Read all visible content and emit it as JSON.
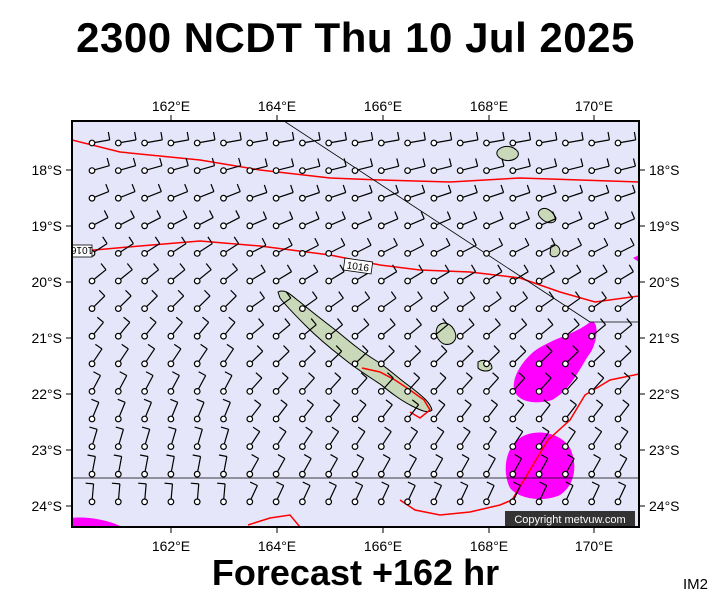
{
  "header": {
    "title": "2300 NCDT Thu 10 Jul 2025"
  },
  "footer": {
    "forecast": "Forecast +162 hr",
    "panel_id": "IM2"
  },
  "map": {
    "lon_labels": [
      "162°E",
      "164°E",
      "166°E",
      "168°E",
      "170°E"
    ],
    "lat_labels": [
      "18°S",
      "19°S",
      "20°S",
      "21°S",
      "22°S",
      "23°S",
      "24°S"
    ],
    "isobar_labels": [
      "1016",
      "1016"
    ],
    "copyright": "Copyright metvuw.com",
    "colors": {
      "sea": "#e6e6fa",
      "isobar": "#ff0000",
      "rain": "#ff00ff",
      "land": "#c8d8b8",
      "wind_barb": "#000000"
    }
  }
}
